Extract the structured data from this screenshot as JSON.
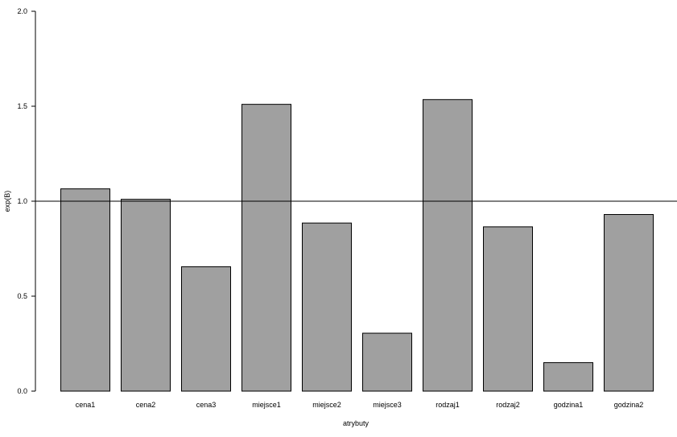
{
  "chart_data": {
    "type": "bar",
    "title": "",
    "xlabel": "atrybuty",
    "ylabel": "exp(B)",
    "categories": [
      "cena1",
      "cena2",
      "cena3",
      "miejsce1",
      "miejsce2",
      "miejsce3",
      "rodzaj1",
      "rodzaj2",
      "godzina1",
      "godzina2"
    ],
    "values": [
      1.065,
      1.01,
      0.655,
      1.51,
      0.885,
      0.305,
      1.535,
      0.865,
      0.15,
      0.93
    ],
    "ylim": [
      0,
      2
    ],
    "yticks": [
      "0.0",
      "0.5",
      "1.0",
      "1.5",
      "2.0"
    ],
    "reference_line": 1.0,
    "bar_color": "#a0a0a0",
    "grid": false,
    "legend": "none"
  }
}
